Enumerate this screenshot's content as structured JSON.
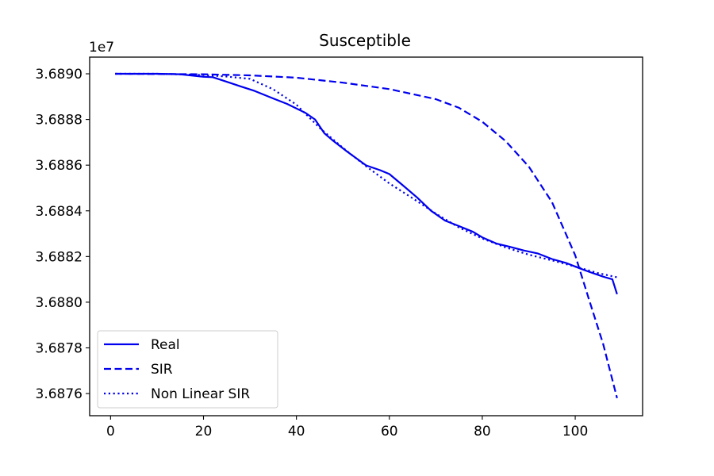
{
  "chart_data": {
    "type": "line",
    "title": "Susceptible",
    "xlabel": "",
    "ylabel": "",
    "y_offset_label": "1e7",
    "y_scale_factor": 10000000,
    "xlim": [
      -4.5,
      114.5
    ],
    "ylim": [
      36875030,
      36890730
    ],
    "x_ticks": [
      0,
      20,
      40,
      60,
      80,
      100
    ],
    "y_ticks": [
      36876000,
      36878000,
      36880000,
      36882000,
      36884000,
      36886000,
      36888000,
      36890000
    ],
    "y_tick_labels": [
      "3.6876",
      "3.6878",
      "3.6880",
      "3.6882",
      "3.6884",
      "3.6886",
      "3.6888",
      "3.6890"
    ],
    "grid": false,
    "legend_position": "lower-left",
    "series": [
      {
        "name": "Real",
        "style": "solid",
        "color": "#0000ee",
        "points": [
          [
            1,
            36890000
          ],
          [
            10,
            36890000
          ],
          [
            15,
            36889980
          ],
          [
            20,
            36889870
          ],
          [
            22,
            36889850
          ],
          [
            25,
            36889650
          ],
          [
            28,
            36889450
          ],
          [
            31,
            36889250
          ],
          [
            35,
            36888920
          ],
          [
            38,
            36888680
          ],
          [
            42,
            36888280
          ],
          [
            44,
            36888000
          ],
          [
            46,
            36887400
          ],
          [
            48,
            36887050
          ],
          [
            51,
            36886580
          ],
          [
            55,
            36885990
          ],
          [
            58,
            36885780
          ],
          [
            60,
            36885610
          ],
          [
            63,
            36885100
          ],
          [
            66,
            36884580
          ],
          [
            69,
            36884000
          ],
          [
            72,
            36883570
          ],
          [
            75,
            36883330
          ],
          [
            78,
            36883080
          ],
          [
            80,
            36882840
          ],
          [
            83,
            36882570
          ],
          [
            86,
            36882420
          ],
          [
            89,
            36882260
          ],
          [
            92,
            36882130
          ],
          [
            95,
            36881890
          ],
          [
            98,
            36881720
          ],
          [
            101,
            36881480
          ],
          [
            103,
            36881330
          ],
          [
            106,
            36881120
          ],
          [
            108,
            36881000
          ],
          [
            109,
            36880350
          ]
        ]
      },
      {
        "name": "SIR",
        "style": "dashed",
        "color": "#0000ee",
        "points": [
          [
            1,
            36890000
          ],
          [
            20,
            36889980
          ],
          [
            30,
            36889930
          ],
          [
            40,
            36889830
          ],
          [
            50,
            36889610
          ],
          [
            60,
            36889330
          ],
          [
            70,
            36888890
          ],
          [
            75,
            36888510
          ],
          [
            80,
            36887900
          ],
          [
            85,
            36887060
          ],
          [
            90,
            36885940
          ],
          [
            95,
            36884380
          ],
          [
            100,
            36882050
          ],
          [
            103,
            36880100
          ],
          [
            106,
            36878180
          ],
          [
            109,
            36875800
          ]
        ]
      },
      {
        "name": "Non Linear SIR",
        "style": "dotted",
        "color": "#0000ee",
        "points": [
          [
            1,
            36890000
          ],
          [
            10,
            36890000
          ],
          [
            20,
            36889950
          ],
          [
            25,
            36889880
          ],
          [
            30,
            36889780
          ],
          [
            35,
            36889320
          ],
          [
            40,
            36888650
          ],
          [
            45,
            36887630
          ],
          [
            50,
            36886760
          ],
          [
            55,
            36885950
          ],
          [
            60,
            36885200
          ],
          [
            65,
            36884550
          ],
          [
            70,
            36883880
          ],
          [
            75,
            36883270
          ],
          [
            80,
            36882790
          ],
          [
            85,
            36882400
          ],
          [
            90,
            36882080
          ],
          [
            95,
            36881830
          ],
          [
            100,
            36881560
          ],
          [
            105,
            36881270
          ],
          [
            109,
            36881090
          ]
        ]
      }
    ]
  }
}
